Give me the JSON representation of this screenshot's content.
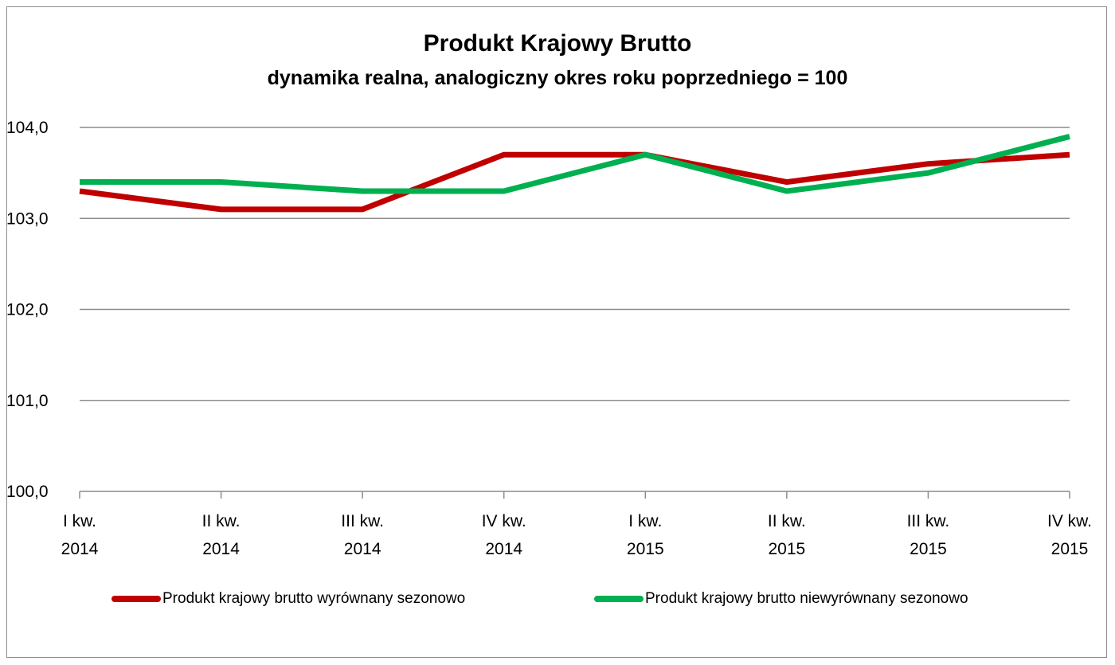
{
  "chart_data": {
    "type": "line",
    "title": "Produkt Krajowy Brutto",
    "subtitle": "dynamika realna, analogiczny okres roku poprzedniego = 100",
    "xlabel": "",
    "ylabel": "",
    "ylim": [
      100,
      104
    ],
    "yticks": [
      "100,0",
      "101,0",
      "102,0",
      "103,0",
      "104,0"
    ],
    "ytick_values": [
      100,
      101,
      102,
      103,
      104
    ],
    "categories": [
      [
        "I kw.",
        "2014"
      ],
      [
        "II kw.",
        "2014"
      ],
      [
        "III kw.",
        "2014"
      ],
      [
        "IV kw.",
        "2014"
      ],
      [
        "I kw.",
        "2015"
      ],
      [
        "II kw.",
        "2015"
      ],
      [
        "III kw.",
        "2015"
      ],
      [
        "IV kw.",
        "2015"
      ]
    ],
    "series": [
      {
        "name": "Produkt krajowy brutto wyrównany sezonowo",
        "color": "#c00000",
        "values": [
          103.3,
          103.1,
          103.1,
          103.7,
          103.7,
          103.4,
          103.6,
          103.7
        ]
      },
      {
        "name": "Produkt krajowy brutto niewyrównany sezonowo",
        "color": "#00b050",
        "values": [
          103.4,
          103.4,
          103.3,
          103.3,
          103.7,
          103.3,
          103.5,
          103.9
        ]
      }
    ],
    "grid": true,
    "legend": "bottom"
  }
}
